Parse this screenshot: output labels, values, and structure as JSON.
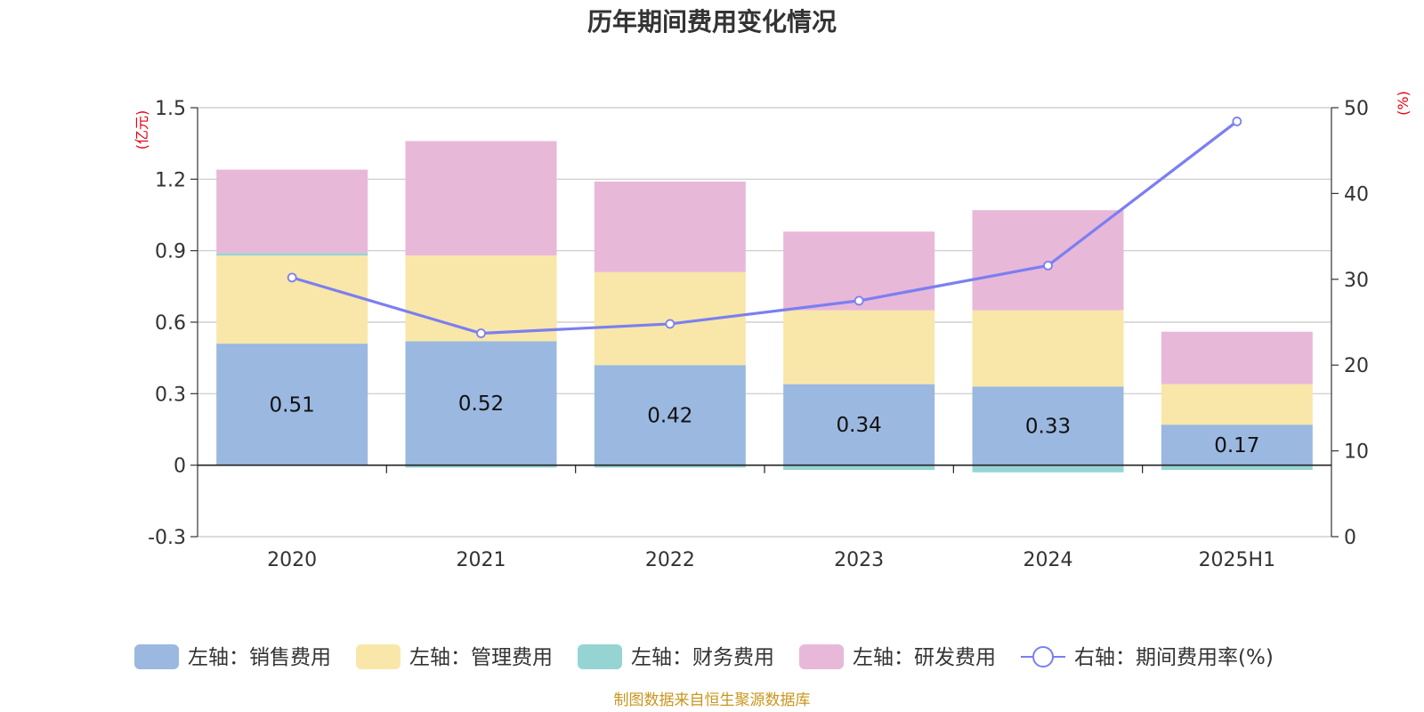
{
  "chart_data": {
    "type": "bar",
    "title": "历年期间费用变化情况",
    "categories": [
      "2020",
      "2021",
      "2022",
      "2023",
      "2024",
      "2025H1"
    ],
    "left_axis": {
      "unit": "(亿元)",
      "ylim": [
        -0.3,
        1.5
      ],
      "ticks": [
        -0.3,
        0,
        0.3,
        0.6,
        0.9,
        1.2,
        1.5
      ],
      "tick_labels": [
        "-0.3",
        "0",
        "0.3",
        "0.6",
        "0.9",
        "1.2",
        "1.5"
      ]
    },
    "right_axis": {
      "unit": "(%)",
      "ylim": [
        0,
        50
      ],
      "ticks": [
        0,
        10,
        20,
        30,
        40,
        50
      ],
      "tick_labels": [
        "0",
        "10",
        "20",
        "30",
        "40",
        "50"
      ]
    },
    "series": [
      {
        "name": "左轴：销售费用",
        "type": "bar",
        "stacked": true,
        "color": "#9bb8e0",
        "values": [
          0.51,
          0.52,
          0.42,
          0.34,
          0.33,
          0.17
        ],
        "labels": [
          "0.51",
          "0.52",
          "0.42",
          "0.34",
          "0.33",
          "0.17"
        ]
      },
      {
        "name": "左轴：管理费用",
        "type": "bar",
        "stacked": true,
        "color": "#f8e7a8",
        "values": [
          0.37,
          0.36,
          0.39,
          0.31,
          0.32,
          0.17
        ]
      },
      {
        "name": "左轴：财务费用",
        "type": "bar",
        "stacked": true,
        "color": "#96d4d4",
        "values": [
          0.01,
          -0.01,
          -0.01,
          -0.02,
          -0.03,
          -0.02
        ]
      },
      {
        "name": "左轴：研发费用",
        "type": "bar",
        "stacked": true,
        "color": "#e8b8d9",
        "values": [
          0.35,
          0.48,
          0.38,
          0.33,
          0.42,
          0.22
        ]
      },
      {
        "name": "右轴：期间费用率(%)",
        "type": "line",
        "axis": "right",
        "color": "#7b7ff0",
        "values": [
          30.2,
          23.7,
          24.8,
          27.5,
          31.6,
          48.4
        ]
      }
    ],
    "grid": true,
    "legend": "bottom"
  },
  "source": "制图数据来自恒生聚源数据库"
}
